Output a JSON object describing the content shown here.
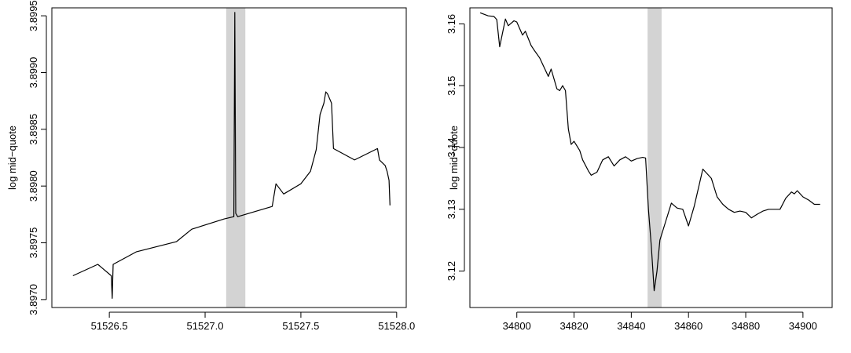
{
  "chart_data": [
    {
      "type": "line",
      "ylabel": "log mid−quote",
      "xlabel": "",
      "title": "",
      "xlim": [
        51526.2,
        51528.05
      ],
      "ylim": [
        3.89693,
        3.89957
      ],
      "xticks": [
        51526.5,
        51527.0,
        51527.5,
        51528.0
      ],
      "xtick_labels": [
        "51526.5",
        "51527.0",
        "51527.5",
        "51528.0"
      ],
      "yticks": [
        3.897,
        3.8975,
        3.898,
        3.8985,
        3.899,
        3.8995
      ],
      "ytick_labels": [
        "3.8970",
        "3.8975",
        "3.8980",
        "3.8985",
        "3.8990",
        "3.8995"
      ],
      "highlight_band": [
        51527.11,
        51527.21
      ],
      "highlight_color": "#d3d3d3",
      "series": [
        {
          "x": [
            51526.31,
            51526.44,
            51526.51,
            51526.515,
            51526.52,
            51526.64,
            51526.85,
            51526.93,
            51527.1,
            51527.15,
            51527.155,
            51527.16,
            51527.17,
            51527.35,
            51527.37,
            51527.41,
            51527.5,
            51527.55,
            51527.58,
            51527.6,
            51527.62,
            51527.63,
            51527.635,
            51527.64,
            51527.66,
            51527.67,
            51527.78,
            51527.9,
            51527.91,
            51527.94,
            51527.95,
            51527.96,
            51527.965
          ],
          "y": [
            3.89721,
            3.89731,
            3.89721,
            3.89701,
            3.89731,
            3.89742,
            3.89751,
            3.89762,
            3.89771,
            3.89773,
            3.89953,
            3.89776,
            3.89773,
            3.89782,
            3.89802,
            3.89793,
            3.89802,
            3.89813,
            3.89832,
            3.89863,
            3.89873,
            3.89883,
            3.89882,
            3.89881,
            3.89873,
            3.89833,
            3.89823,
            3.89833,
            3.89823,
            3.89818,
            3.89813,
            3.89805,
            3.89783
          ]
        }
      ]
    },
    {
      "type": "line",
      "ylabel": "log mid−quote",
      "xlabel": "",
      "title": "",
      "xlim": [
        34783.6,
        34910.2
      ],
      "ylim": [
        3.1141,
        3.1626
      ],
      "xticks": [
        34800,
        34820,
        34840,
        34860,
        34880,
        34900
      ],
      "xtick_labels": [
        "34800",
        "34820",
        "34840",
        "34860",
        "34880",
        "34900"
      ],
      "yticks": [
        3.12,
        3.13,
        3.14,
        3.15,
        3.16
      ],
      "ytick_labels": [
        "3.12",
        "3.13",
        "3.14",
        "3.15",
        "3.16"
      ],
      "highlight_band": [
        34845.7,
        34850.6
      ],
      "highlight_color": "#d3d3d3",
      "series": [
        {
          "x": [
            34787.2,
            34790,
            34792,
            34793,
            34794,
            34796,
            34797,
            34799,
            34800,
            34802,
            34803,
            34805,
            34806,
            34808,
            34809,
            34811,
            34812,
            34814,
            34815,
            34816,
            34817,
            34818,
            34819,
            34820,
            34822,
            34823,
            34825,
            34826,
            34828,
            34830,
            34832,
            34834,
            34836,
            34838,
            34840,
            34842,
            34844,
            34845,
            34846,
            34847,
            34848,
            34849,
            34850,
            34852,
            34854,
            34856,
            34858,
            34860,
            34862,
            34864,
            34865,
            34866,
            34868,
            34870,
            34872,
            34874,
            34876,
            34878,
            34880,
            34882,
            34884,
            34886,
            34888,
            34890,
            34892,
            34894,
            34896,
            34897,
            34898,
            34900,
            34902,
            34904,
            34906
          ],
          "y": [
            3.1618,
            3.1613,
            3.1612,
            3.1607,
            3.1563,
            3.1608,
            3.1597,
            3.1605,
            3.1603,
            3.1582,
            3.1588,
            3.1565,
            3.1558,
            3.1545,
            3.1535,
            3.1515,
            3.1527,
            3.1495,
            3.1492,
            3.15,
            3.1492,
            3.143,
            3.1405,
            3.141,
            3.1395,
            3.138,
            3.1362,
            3.1355,
            3.136,
            3.138,
            3.1385,
            3.137,
            3.138,
            3.1385,
            3.1378,
            3.1382,
            3.1384,
            3.1383,
            3.13,
            3.124,
            3.1168,
            3.12,
            3.125,
            3.128,
            3.131,
            3.1302,
            3.13,
            3.1273,
            3.1305,
            3.1345,
            3.1365,
            3.136,
            3.135,
            3.132,
            3.1308,
            3.13,
            3.1295,
            3.1297,
            3.1295,
            3.1286,
            3.1292,
            3.1297,
            3.13,
            3.13,
            3.13,
            3.1318,
            3.1328,
            3.1325,
            3.133,
            3.132,
            3.1315,
            3.1308,
            3.1308
          ]
        }
      ]
    }
  ]
}
